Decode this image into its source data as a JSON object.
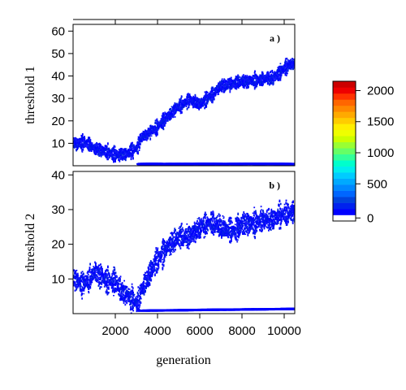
{
  "chart_data": {
    "type": "heatmap",
    "xlabel": "generation",
    "xlim": [
      0,
      10500
    ],
    "xticks": [
      2000,
      4000,
      6000,
      8000,
      10000
    ],
    "tick_labels_x": [
      "2000",
      "4000",
      "6000",
      "8000",
      "10000"
    ],
    "panels": [
      {
        "tag": "a )",
        "ylabel": "threshold 1",
        "ylim": [
          0,
          63
        ],
        "yticks": [
          10,
          20,
          30,
          40,
          50,
          60
        ],
        "tick_labels_y": [
          "10",
          "20",
          "30",
          "40",
          "50",
          "60"
        ],
        "upper_band": [
          [
            0,
            10
          ],
          [
            500,
            11
          ],
          [
            1000,
            8
          ],
          [
            1500,
            7
          ],
          [
            2000,
            5
          ],
          [
            2500,
            6
          ],
          [
            3000,
            8
          ],
          [
            3200,
            13
          ],
          [
            4000,
            18
          ],
          [
            4500,
            23
          ],
          [
            5000,
            27
          ],
          [
            5500,
            30
          ],
          [
            6000,
            28
          ],
          [
            6500,
            32
          ],
          [
            7000,
            36
          ],
          [
            8000,
            38
          ],
          [
            9000,
            39
          ],
          [
            9500,
            40
          ],
          [
            10000,
            44
          ],
          [
            10500,
            47
          ]
        ],
        "band_halfwidth": 2.5,
        "lower_band": [
          [
            3000,
            1
          ],
          [
            10500,
            1
          ]
        ]
      },
      {
        "tag": "b )",
        "ylabel": "threshold 2",
        "ylim": [
          0,
          41
        ],
        "yticks": [
          10,
          20,
          30,
          40
        ],
        "tick_labels_y": [
          "10",
          "20",
          "30",
          "40"
        ],
        "upper_band": [
          [
            0,
            10
          ],
          [
            500,
            9
          ],
          [
            1000,
            12
          ],
          [
            1500,
            10
          ],
          [
            2000,
            9
          ],
          [
            2500,
            6
          ],
          [
            3000,
            3
          ],
          [
            3200,
            7
          ],
          [
            3600,
            12
          ],
          [
            4000,
            16
          ],
          [
            4500,
            20
          ],
          [
            5000,
            22
          ],
          [
            5500,
            23
          ],
          [
            6000,
            25
          ],
          [
            6500,
            27
          ],
          [
            7000,
            25
          ],
          [
            7500,
            24
          ],
          [
            8000,
            26
          ],
          [
            9000,
            27
          ],
          [
            10000,
            29
          ],
          [
            10500,
            30
          ]
        ],
        "band_halfwidth": 3,
        "lower_band": [
          [
            3000,
            1
          ],
          [
            10500,
            1.5
          ]
        ]
      }
    ],
    "colorbar": {
      "ticks": [
        0,
        500,
        1000,
        1500,
        2000
      ],
      "tick_labels": [
        "0",
        "500",
        "1000",
        "1500",
        "2000"
      ],
      "max": 2150,
      "colors": [
        "#ffffff",
        "#0000ff",
        "#0022ee",
        "#0044dd",
        "#0066ff",
        "#0088ff",
        "#00aaff",
        "#00ccff",
        "#00eeee",
        "#00ffcc",
        "#33ff99",
        "#66ff66",
        "#99ff33",
        "#ccff00",
        "#eeff00",
        "#ffee00",
        "#ffcc00",
        "#ffaa00",
        "#ff8800",
        "#ff6600",
        "#ff3300",
        "#ee0000",
        "#cc0000"
      ]
    },
    "grid": false
  }
}
